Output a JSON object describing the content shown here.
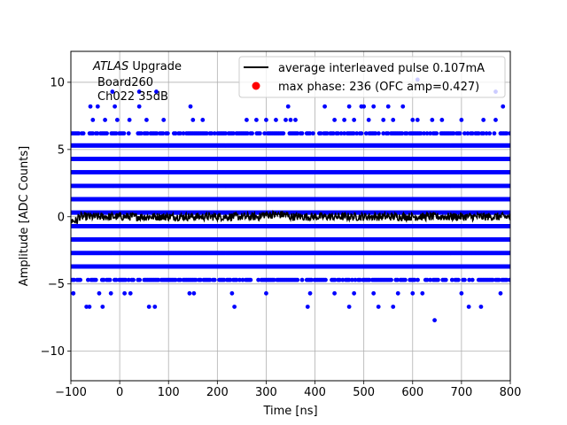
{
  "chart_data": {
    "type": "scatter",
    "xlabel": "Time [ns]",
    "ylabel": "Amplitude [ADC Counts]",
    "xlim": [
      -100,
      800
    ],
    "ylim": [
      -12.2,
      12.3
    ],
    "grid": true,
    "x_ticks": [
      -100,
      0,
      100,
      200,
      300,
      400,
      500,
      600,
      700,
      800
    ],
    "y_ticks": [
      -10,
      -5,
      0,
      5,
      10
    ],
    "annotation": {
      "line1_italic": "ATLAS",
      "line1_rest": " Upgrade",
      "line2": "Board260",
      "line3": "Ch022 35dB"
    },
    "legend": {
      "placement": "top-right",
      "entries": [
        {
          "label": "average interleaved pulse 0.107mA",
          "marker": "line",
          "color": "#000000"
        },
        {
          "label": "max phase: 236 (OFC amp=0.427)",
          "marker": "dot",
          "color": "#ff0000"
        }
      ]
    },
    "series": [
      {
        "type": "scatter",
        "color": "#0000ff",
        "dense_levels": [
          -3.7,
          -2.7,
          -1.7,
          -0.7,
          0.3,
          1.3,
          2.3,
          3.3,
          4.3,
          5.3
        ],
        "medium_levels": [
          -4.7,
          6.2
        ],
        "points": [
          [
            -95,
            -5.7
          ],
          [
            -68,
            -6.7
          ],
          [
            -62,
            -6.7
          ],
          [
            -42,
            -5.7
          ],
          [
            -18,
            -5.7
          ],
          [
            -35,
            -6.7
          ],
          [
            22,
            -5.7
          ],
          [
            60,
            -6.7
          ],
          [
            72,
            -6.7
          ],
          [
            143,
            -5.7
          ],
          [
            152,
            -5.7
          ],
          [
            230,
            -5.7
          ],
          [
            235,
            -6.7
          ],
          [
            300,
            -5.7
          ],
          [
            385,
            -6.7
          ],
          [
            390,
            -5.7
          ],
          [
            440,
            -5.7
          ],
          [
            470,
            -6.7
          ],
          [
            480,
            -5.7
          ],
          [
            520,
            -5.7
          ],
          [
            530,
            -6.7
          ],
          [
            560,
            -6.7
          ],
          [
            570,
            -5.7
          ],
          [
            620,
            -5.7
          ],
          [
            645,
            -7.7
          ],
          [
            700,
            -5.7
          ],
          [
            715,
            -6.7
          ],
          [
            740,
            -6.7
          ],
          [
            780,
            -5.7
          ],
          [
            -95,
            -5.7
          ],
          [
            10,
            -5.7
          ],
          [
            600,
            -5.7
          ],
          [
            -55,
            7.2
          ],
          [
            -60,
            8.2
          ],
          [
            -45,
            8.2
          ],
          [
            -30,
            7.2
          ],
          [
            -10,
            8.2
          ],
          [
            -5,
            7.2
          ],
          [
            20,
            7.2
          ],
          [
            40,
            8.2
          ],
          [
            55,
            7.2
          ],
          [
            90,
            7.2
          ],
          [
            145,
            8.2
          ],
          [
            150,
            7.2
          ],
          [
            170,
            7.2
          ],
          [
            260,
            7.2
          ],
          [
            280,
            7.2
          ],
          [
            300,
            7.2
          ],
          [
            320,
            7.2
          ],
          [
            340,
            7.2
          ],
          [
            345,
            8.2
          ],
          [
            350,
            7.2
          ],
          [
            360,
            7.2
          ],
          [
            420,
            8.2
          ],
          [
            440,
            7.2
          ],
          [
            460,
            7.2
          ],
          [
            470,
            8.2
          ],
          [
            480,
            7.2
          ],
          [
            495,
            8.2
          ],
          [
            500,
            8.2
          ],
          [
            510,
            7.2
          ],
          [
            520,
            8.2
          ],
          [
            540,
            7.2
          ],
          [
            550,
            8.2
          ],
          [
            560,
            7.2
          ],
          [
            580,
            8.2
          ],
          [
            600,
            7.2
          ],
          [
            610,
            7.2
          ],
          [
            640,
            7.2
          ],
          [
            660,
            7.2
          ],
          [
            700,
            7.2
          ],
          [
            745,
            7.2
          ],
          [
            770,
            7.2
          ],
          [
            785,
            8.2
          ],
          [
            -15,
            9.3
          ],
          [
            40,
            9.3
          ],
          [
            75,
            9.3
          ],
          [
            610,
            10.2
          ],
          [
            770,
            9.3
          ]
        ]
      },
      {
        "type": "line",
        "name": "average interleaved pulse 0.107mA",
        "color": "#000000",
        "mean": 0.0,
        "noise": 0.3
      }
    ]
  }
}
